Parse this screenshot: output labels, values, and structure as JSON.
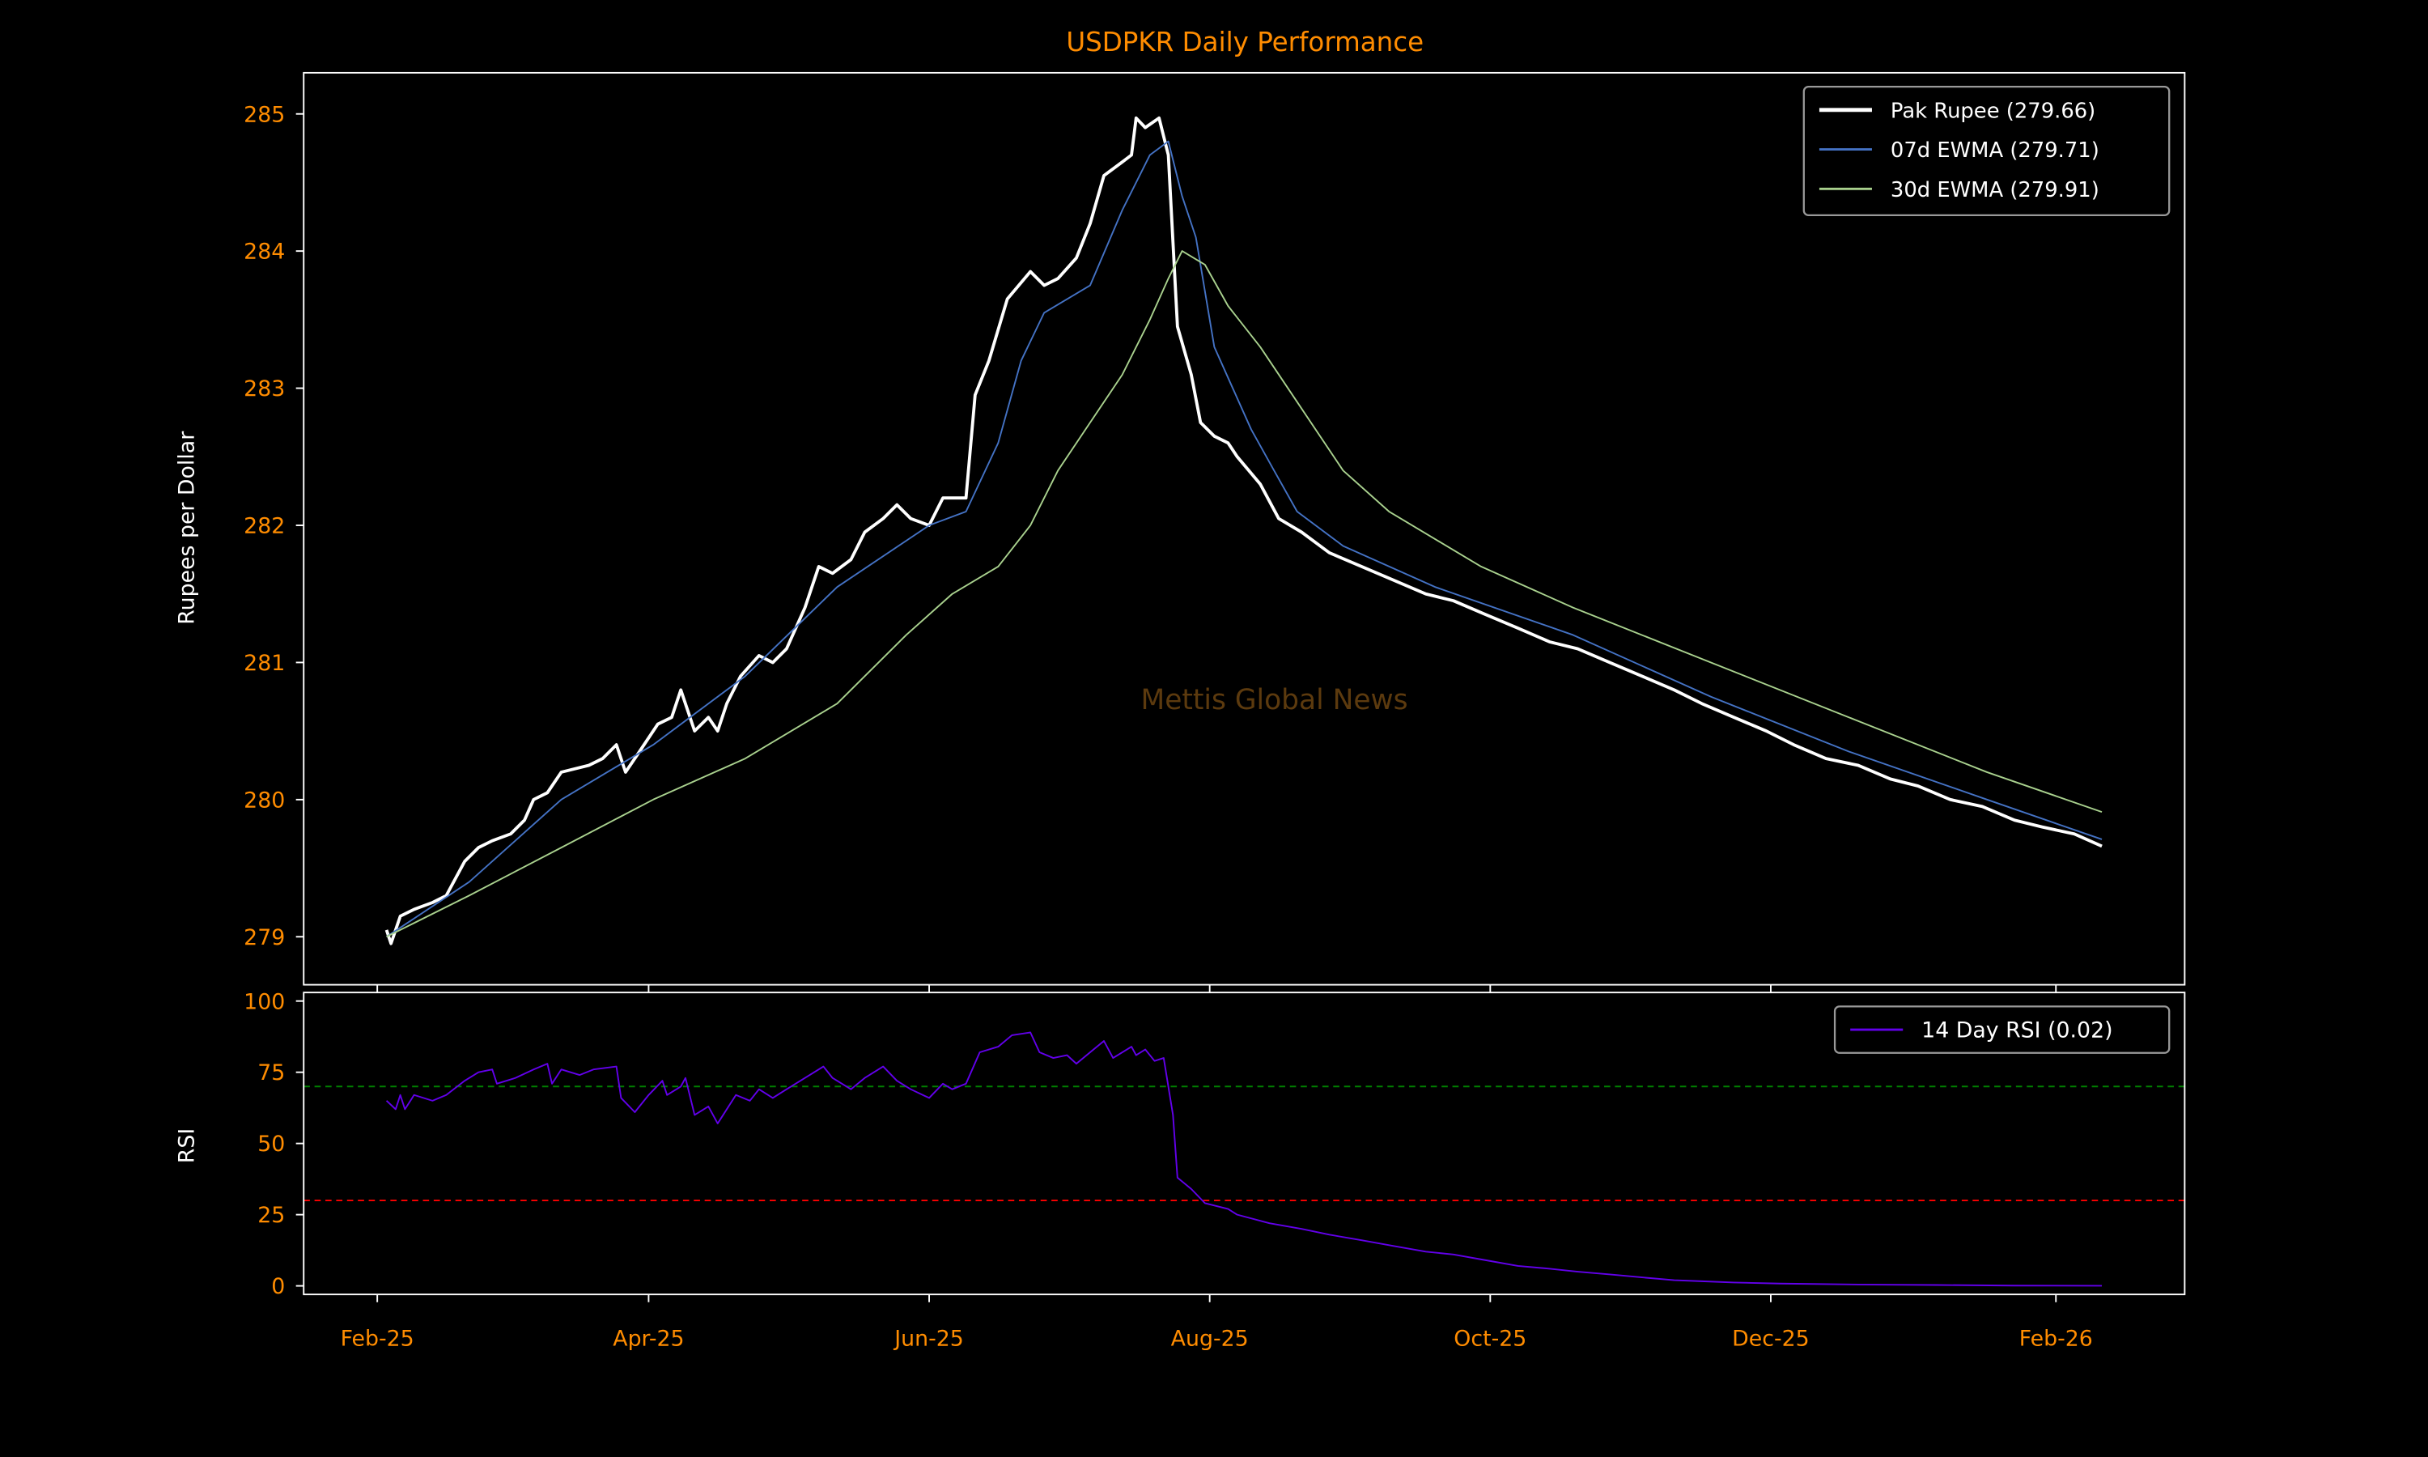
{
  "chart_data": [
    {
      "type": "line",
      "title": "USDPKR Daily Performance",
      "ylabel": "Rupees per Dollar",
      "xlabel": "",
      "x_unit": "days since 2025-02-01",
      "xlim": [
        -16,
        393
      ],
      "ylim": [
        278.65,
        285.3
      ],
      "yticks": [
        279,
        280,
        281,
        282,
        283,
        284,
        285
      ],
      "xticks": [
        {
          "day": 0,
          "label": "Feb-25"
        },
        {
          "day": 59,
          "label": "Apr-25"
        },
        {
          "day": 120,
          "label": "Jun-25"
        },
        {
          "day": 181,
          "label": "Aug-25"
        },
        {
          "day": 242,
          "label": "Oct-25"
        },
        {
          "day": 303,
          "label": "Dec-25"
        },
        {
          "day": 365,
          "label": "Feb-26"
        }
      ],
      "watermark": "Mettis Global News",
      "legend_position": "upper right",
      "series": [
        {
          "name": "Pak Rupee (279.66)",
          "color": "#ffffff",
          "width": 2,
          "points": [
            [
              2,
              279.05
            ],
            [
              3,
              278.95
            ],
            [
              5,
              279.15
            ],
            [
              8,
              279.2
            ],
            [
              12,
              279.25
            ],
            [
              15,
              279.3
            ],
            [
              19,
              279.55
            ],
            [
              22,
              279.65
            ],
            [
              25,
              279.7
            ],
            [
              29,
              279.75
            ],
            [
              32,
              279.85
            ],
            [
              34,
              280.0
            ],
            [
              37,
              280.05
            ],
            [
              40,
              280.2
            ],
            [
              46,
              280.25
            ],
            [
              49,
              280.3
            ],
            [
              52,
              280.4
            ],
            [
              54,
              280.2
            ],
            [
              57,
              280.35
            ],
            [
              61,
              280.55
            ],
            [
              64,
              280.6
            ],
            [
              66,
              280.8
            ],
            [
              69,
              280.5
            ],
            [
              72,
              280.6
            ],
            [
              74,
              280.5
            ],
            [
              76,
              280.7
            ],
            [
              79,
              280.9
            ],
            [
              83,
              281.05
            ],
            [
              86,
              281.0
            ],
            [
              89,
              281.1
            ],
            [
              93,
              281.4
            ],
            [
              96,
              281.7
            ],
            [
              99,
              281.65
            ],
            [
              103,
              281.75
            ],
            [
              106,
              281.95
            ],
            [
              110,
              282.05
            ],
            [
              113,
              282.15
            ],
            [
              116,
              282.05
            ],
            [
              120,
              282.0
            ],
            [
              123,
              282.2
            ],
            [
              128,
              282.2
            ],
            [
              130,
              282.95
            ],
            [
              133,
              283.2
            ],
            [
              137,
              283.65
            ],
            [
              142,
              283.85
            ],
            [
              145,
              283.75
            ],
            [
              148,
              283.8
            ],
            [
              152,
              283.95
            ],
            [
              155,
              284.2
            ],
            [
              158,
              284.55
            ],
            [
              162,
              284.65
            ],
            [
              164,
              284.7
            ],
            [
              165,
              284.97
            ],
            [
              167,
              284.9
            ],
            [
              170,
              284.97
            ],
            [
              172,
              284.7
            ],
            [
              174,
              283.45
            ],
            [
              177,
              283.1
            ],
            [
              179,
              282.75
            ],
            [
              182,
              282.65
            ],
            [
              185,
              282.6
            ],
            [
              187,
              282.5
            ],
            [
              192,
              282.3
            ],
            [
              196,
              282.05
            ],
            [
              201,
              281.95
            ],
            [
              207,
              281.8
            ],
            [
              214,
              281.7
            ],
            [
              221,
              281.6
            ],
            [
              228,
              281.5
            ],
            [
              234,
              281.45
            ],
            [
              241,
              281.35
            ],
            [
              248,
              281.25
            ],
            [
              255,
              281.15
            ],
            [
              261,
              281.1
            ],
            [
              268,
              281.0
            ],
            [
              275,
              280.9
            ],
            [
              282,
              280.8
            ],
            [
              288,
              280.7
            ],
            [
              295,
              280.6
            ],
            [
              302,
              280.5
            ],
            [
              308,
              280.4
            ],
            [
              315,
              280.3
            ],
            [
              322,
              280.25
            ],
            [
              329,
              280.15
            ],
            [
              335,
              280.1
            ],
            [
              342,
              280.0
            ],
            [
              349,
              279.95
            ],
            [
              356,
              279.85
            ],
            [
              362,
              279.8
            ],
            [
              369,
              279.75
            ],
            [
              375,
              279.66
            ]
          ]
        },
        {
          "name": "07d EWMA (279.71)",
          "color": "#4472c4",
          "width": 1,
          "points": [
            [
              2,
              279.0
            ],
            [
              20,
              279.4
            ],
            [
              40,
              280.0
            ],
            [
              60,
              280.4
            ],
            [
              80,
              280.9
            ],
            [
              100,
              281.55
            ],
            [
              120,
              282.0
            ],
            [
              128,
              282.1
            ],
            [
              135,
              282.6
            ],
            [
              140,
              283.2
            ],
            [
              145,
              283.55
            ],
            [
              155,
              283.75
            ],
            [
              162,
              284.3
            ],
            [
              168,
              284.7
            ],
            [
              172,
              284.8
            ],
            [
              175,
              284.4
            ],
            [
              178,
              284.1
            ],
            [
              182,
              283.3
            ],
            [
              186,
              283.0
            ],
            [
              190,
              282.7
            ],
            [
              195,
              282.4
            ],
            [
              200,
              282.1
            ],
            [
              210,
              281.85
            ],
            [
              230,
              281.55
            ],
            [
              260,
              281.2
            ],
            [
              290,
              280.75
            ],
            [
              320,
              280.35
            ],
            [
              350,
              280.0
            ],
            [
              375,
              279.71
            ]
          ]
        },
        {
          "name": "30d EWMA (279.91)",
          "color": "#a9d18e",
          "width": 1,
          "points": [
            [
              2,
              279.0
            ],
            [
              20,
              279.3
            ],
            [
              40,
              279.65
            ],
            [
              60,
              280.0
            ],
            [
              80,
              280.3
            ],
            [
              100,
              280.7
            ],
            [
              115,
              281.2
            ],
            [
              125,
              281.5
            ],
            [
              135,
              281.7
            ],
            [
              142,
              282.0
            ],
            [
              148,
              282.4
            ],
            [
              155,
              282.75
            ],
            [
              162,
              283.1
            ],
            [
              168,
              283.5
            ],
            [
              172,
              283.8
            ],
            [
              175,
              284.0
            ],
            [
              180,
              283.9
            ],
            [
              185,
              283.6
            ],
            [
              192,
              283.3
            ],
            [
              200,
              282.9
            ],
            [
              210,
              282.4
            ],
            [
              220,
              282.1
            ],
            [
              240,
              281.7
            ],
            [
              260,
              281.4
            ],
            [
              290,
              281.0
            ],
            [
              320,
              280.6
            ],
            [
              350,
              280.2
            ],
            [
              375,
              279.91
            ]
          ]
        }
      ]
    },
    {
      "type": "line",
      "ylabel": "RSI",
      "ylim": [
        -3,
        103
      ],
      "yticks": [
        0,
        25,
        50,
        75,
        100
      ],
      "legend_position": "upper right",
      "hlines": [
        {
          "value": 70,
          "color": "#008000"
        },
        {
          "value": 30,
          "color": "#ff0000"
        }
      ],
      "series": [
        {
          "name": "14 Day RSI (0.02)",
          "color": "#6200ea",
          "width": 1,
          "points": [
            [
              2,
              65
            ],
            [
              4,
              62
            ],
            [
              5,
              67
            ],
            [
              6,
              62
            ],
            [
              8,
              67
            ],
            [
              12,
              65
            ],
            [
              15,
              67
            ],
            [
              19,
              72
            ],
            [
              22,
              75
            ],
            [
              25,
              76
            ],
            [
              26,
              71
            ],
            [
              30,
              73
            ],
            [
              34,
              76
            ],
            [
              37,
              78
            ],
            [
              38,
              71
            ],
            [
              40,
              76
            ],
            [
              44,
              74
            ],
            [
              47,
              76
            ],
            [
              52,
              77
            ],
            [
              53,
              66
            ],
            [
              56,
              61
            ],
            [
              59,
              67
            ],
            [
              62,
              72
            ],
            [
              63,
              67
            ],
            [
              66,
              70
            ],
            [
              67,
              73
            ],
            [
              69,
              60
            ],
            [
              72,
              63
            ],
            [
              74,
              57
            ],
            [
              78,
              67
            ],
            [
              81,
              65
            ],
            [
              83,
              69
            ],
            [
              86,
              66
            ],
            [
              89,
              69
            ],
            [
              93,
              73
            ],
            [
              97,
              77
            ],
            [
              99,
              73
            ],
            [
              103,
              69
            ],
            [
              106,
              73
            ],
            [
              110,
              77
            ],
            [
              113,
              72
            ],
            [
              116,
              69
            ],
            [
              120,
              66
            ],
            [
              123,
              71
            ],
            [
              125,
              69
            ],
            [
              128,
              71
            ],
            [
              131,
              82
            ],
            [
              135,
              84
            ],
            [
              138,
              88
            ],
            [
              142,
              89
            ],
            [
              144,
              82
            ],
            [
              147,
              80
            ],
            [
              150,
              81
            ],
            [
              152,
              78
            ],
            [
              155,
              82
            ],
            [
              158,
              86
            ],
            [
              160,
              80
            ],
            [
              164,
              84
            ],
            [
              165,
              81
            ],
            [
              167,
              83
            ],
            [
              169,
              79
            ],
            [
              171,
              80
            ],
            [
              173,
              60
            ],
            [
              174,
              38
            ],
            [
              177,
              34
            ],
            [
              180,
              29
            ],
            [
              185,
              27
            ],
            [
              187,
              25
            ],
            [
              194,
              22
            ],
            [
              201,
              20
            ],
            [
              207,
              18
            ],
            [
              214,
              16
            ],
            [
              221,
              14
            ],
            [
              228,
              12
            ],
            [
              234,
              11
            ],
            [
              241,
              9
            ],
            [
              248,
              7
            ],
            [
              255,
              6
            ],
            [
              261,
              5
            ],
            [
              268,
              4
            ],
            [
              275,
              3
            ],
            [
              282,
              2
            ],
            [
              288,
              1.6
            ],
            [
              295,
              1.2
            ],
            [
              305,
              0.8
            ],
            [
              322,
              0.5
            ],
            [
              339,
              0.3
            ],
            [
              356,
              0.1
            ],
            [
              375,
              0.02
            ]
          ]
        }
      ]
    }
  ]
}
